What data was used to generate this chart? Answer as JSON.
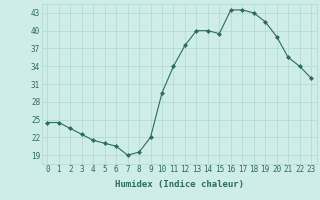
{
  "x": [
    0,
    1,
    2,
    3,
    4,
    5,
    6,
    7,
    8,
    9,
    10,
    11,
    12,
    13,
    14,
    15,
    16,
    17,
    18,
    19,
    20,
    21,
    22,
    23
  ],
  "y": [
    24.5,
    24.5,
    23.5,
    22.5,
    21.5,
    21.0,
    20.5,
    19.0,
    19.5,
    22.0,
    29.5,
    34.0,
    37.5,
    40.0,
    40.0,
    39.5,
    43.5,
    43.5,
    43.0,
    41.5,
    39.0,
    35.5,
    34.0,
    32.0
  ],
  "line_color": "#2d6b5e",
  "marker": "D",
  "marker_size": 2,
  "bg_color": "#ceecea",
  "grid_color": "#b0d8d4",
  "xlabel": "Humidex (Indice chaleur)",
  "xticks": [
    0,
    1,
    2,
    3,
    4,
    5,
    6,
    7,
    8,
    9,
    10,
    11,
    12,
    13,
    14,
    15,
    16,
    17,
    18,
    19,
    20,
    21,
    22,
    23
  ],
  "yticks": [
    19,
    22,
    25,
    28,
    31,
    34,
    37,
    40,
    43
  ],
  "ylim": [
    17.5,
    44.5
  ],
  "xlim": [
    -0.5,
    23.5
  ],
  "tick_color": "#2d6b5e",
  "label_fontsize": 6.5,
  "tick_fontsize": 5.5
}
